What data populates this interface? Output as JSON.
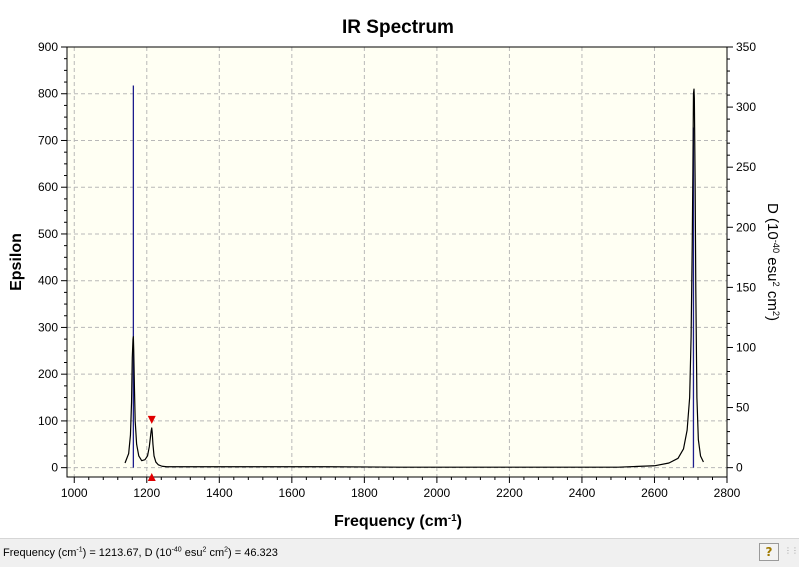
{
  "chart_data": {
    "type": "line",
    "title": "IR Spectrum",
    "xlabel": "Frequency (cm<sup>-1</sup>)",
    "ylabel_left": "Epsilon",
    "ylabel_right": "D (10<sup>-40</sup> esu<sup>2</sup> cm<sup>2</sup>)",
    "xlim": [
      980,
      2800
    ],
    "ylim_left": [
      -20,
      900
    ],
    "ylim_right": [
      -7.78,
      350
    ],
    "x_ticks": [
      1000,
      1200,
      1400,
      1600,
      1800,
      2000,
      2200,
      2400,
      2600,
      2800
    ],
    "y_left_ticks": [
      0,
      100,
      200,
      300,
      400,
      500,
      600,
      700,
      800,
      900
    ],
    "y_right_ticks": [
      0,
      50,
      100,
      150,
      200,
      250,
      300,
      350
    ],
    "grid": true,
    "background_color": "#fffff3",
    "line_color": "#000000",
    "stick_color": "#1c1c8c",
    "marker_color": "#e00000",
    "series": [
      {
        "x": [
          1140,
          1150,
          1155,
          1158,
          1160,
          1162,
          1163,
          1164,
          1166,
          1168,
          1172,
          1178,
          1186,
          1195,
          1202,
          1207,
          1210,
          1212,
          1213.67,
          1215,
          1217,
          1220,
          1225,
          1232,
          1242,
          1255,
          1280,
          1350,
          1500,
          1700,
          1900,
          2100,
          2300,
          2500,
          2600,
          2640,
          2665,
          2680,
          2690,
          2697,
          2701,
          2704,
          2706,
          2707.5,
          2709,
          2710,
          2712,
          2714,
          2717,
          2721,
          2727,
          2735
        ],
        "y": [
          10,
          30,
          70,
          140,
          235,
          275,
          280,
          250,
          170,
          100,
          50,
          25,
          15,
          17,
          25,
          45,
          65,
          78,
          85,
          75,
          50,
          25,
          12,
          6,
          3,
          2,
          2,
          2,
          2,
          2,
          1,
          1,
          1,
          1,
          4,
          10,
          20,
          40,
          80,
          150,
          280,
          470,
          640,
          800,
          810,
          790,
          620,
          380,
          150,
          60,
          25,
          12
        ]
      }
    ],
    "sticks": [
      {
        "x": 1163,
        "d": 318
      },
      {
        "x": 2707.5,
        "d": 283
      }
    ],
    "marker_x": 1213.67,
    "marker_y": 85
  },
  "status": {
    "text": "Frequency (cm<sup>-1</sup>) = 1213.67, D (10<sup>-40</sup> esu<sup>2</sup> cm<sup>2</sup>) = 46.323"
  },
  "icons": {
    "help": "help-icon",
    "grip": "resize-grip-icon"
  }
}
